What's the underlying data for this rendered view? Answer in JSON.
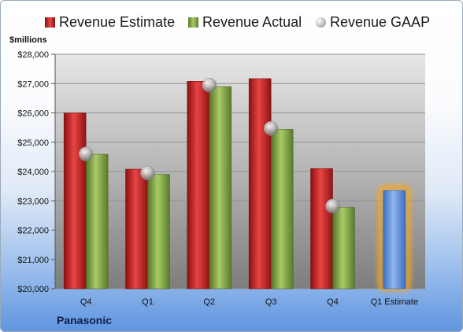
{
  "chart_data": {
    "type": "bar",
    "categories": [
      "Q4",
      "Q1",
      "Q2",
      "Q3",
      "Q4",
      "Q1 Estimate"
    ],
    "series": [
      {
        "name": "Revenue Estimate",
        "values": [
          26000,
          24080,
          27080,
          27170,
          24100,
          null
        ],
        "color": "#d42626"
      },
      {
        "name": "Revenue Actual",
        "values": [
          24590,
          23900,
          26900,
          25440,
          22780,
          null
        ],
        "color": "#8bb14a"
      },
      {
        "name": "Revenue GAAP",
        "values": [
          24600,
          23950,
          26950,
          25470,
          22820,
          null
        ],
        "color": "#c8c8c8"
      }
    ],
    "forecast": {
      "category": "Q1 Estimate",
      "value": 23350,
      "color": "#6b9be0",
      "glow": "#f5a623"
    },
    "units": "$millions",
    "ylim": [
      20000,
      28000
    ],
    "yticks": [
      "$20,000",
      "$21,000",
      "$22,000",
      "$23,000",
      "$24,000",
      "$25,000",
      "$26,000",
      "$27,000",
      "$28,000"
    ],
    "grid": true,
    "legend_placement": "top"
  },
  "company": "Panasonic"
}
